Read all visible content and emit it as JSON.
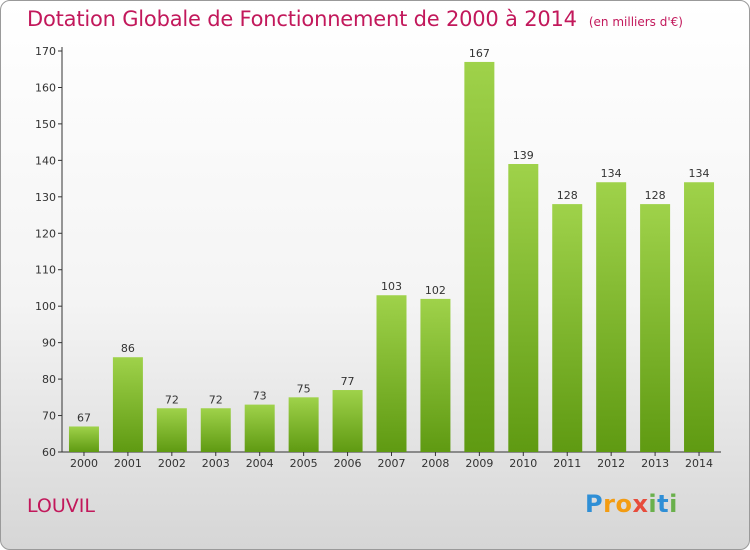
{
  "title": "Dotation Globale de Fonctionnement de 2000 à 2014",
  "unit": "(en milliers d'€)",
  "commune": "LOUVIL",
  "logo": {
    "letters": [
      {
        "ch": "P",
        "color": "#2f8fd6"
      },
      {
        "ch": "r",
        "color": "#f39c12"
      },
      {
        "ch": "o",
        "color": "#f39c12"
      },
      {
        "ch": "x",
        "color": "#e74c3c"
      },
      {
        "ch": "i",
        "color": "#6ab04c"
      },
      {
        "ch": "t",
        "color": "#2f8fd6"
      },
      {
        "ch": "i",
        "color": "#6ab04c"
      }
    ]
  },
  "colors": {
    "bar_top": "#9fd24a",
    "bar_bottom": "#5f9a12",
    "text": "#333333",
    "accent": "#c2185b"
  },
  "chart_data": {
    "type": "bar",
    "categories": [
      "2000",
      "2001",
      "2002",
      "2003",
      "2004",
      "2005",
      "2006",
      "2007",
      "2008",
      "2009",
      "2010",
      "2011",
      "2012",
      "2013",
      "2014"
    ],
    "values": [
      67,
      86,
      72,
      72,
      73,
      75,
      77,
      103,
      102,
      167,
      139,
      128,
      134,
      128,
      134
    ],
    "ylim": [
      60,
      170
    ],
    "yticks": [
      60,
      70,
      80,
      90,
      100,
      110,
      120,
      130,
      140,
      150,
      160,
      170
    ],
    "grid": false,
    "data_labels": true
  }
}
